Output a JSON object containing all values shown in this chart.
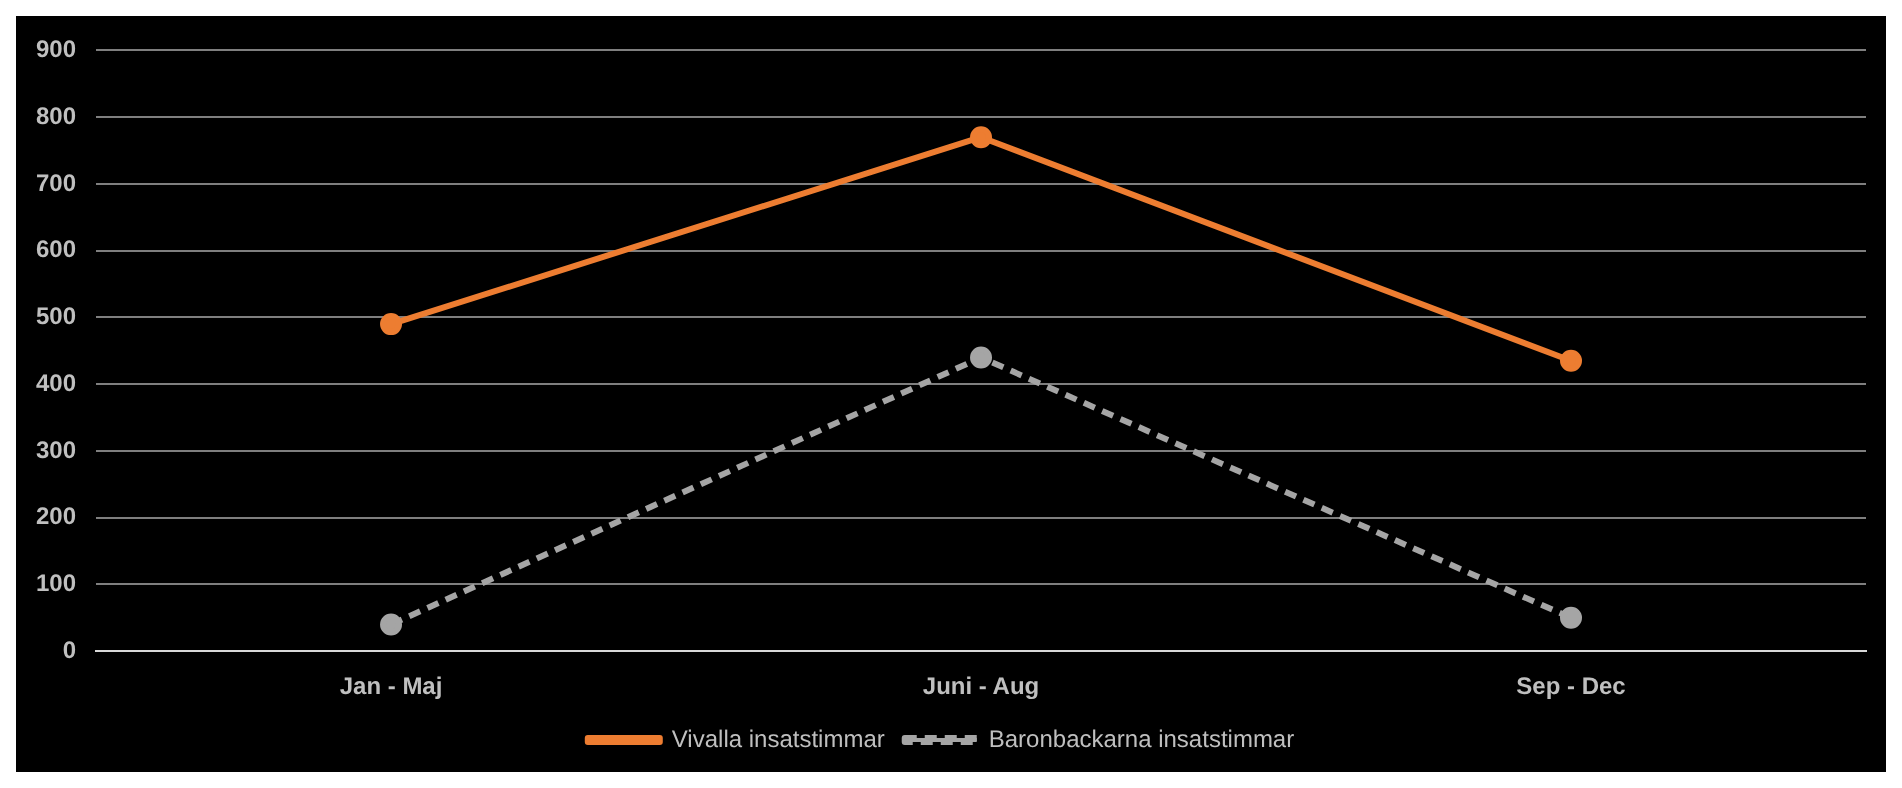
{
  "chart_data": {
    "type": "line",
    "categories": [
      "Jan - Maj",
      "Juni - Aug",
      "Sep - Dec"
    ],
    "series": [
      {
        "name": "Vivalla insatstimmar",
        "color": "#ed7d31",
        "values": [
          490,
          770,
          435
        ],
        "line_style": "solid"
      },
      {
        "name": "Baronbackarna insatstimmar",
        "color": "#a5a5a5",
        "values": [
          40,
          440,
          50
        ],
        "line_style": "dashed"
      }
    ],
    "ylim": [
      0,
      900
    ],
    "yticks": [
      0,
      100,
      200,
      300,
      400,
      500,
      600,
      700,
      800,
      900
    ],
    "grid": "y",
    "legend": "bottom",
    "marker": "circle"
  }
}
